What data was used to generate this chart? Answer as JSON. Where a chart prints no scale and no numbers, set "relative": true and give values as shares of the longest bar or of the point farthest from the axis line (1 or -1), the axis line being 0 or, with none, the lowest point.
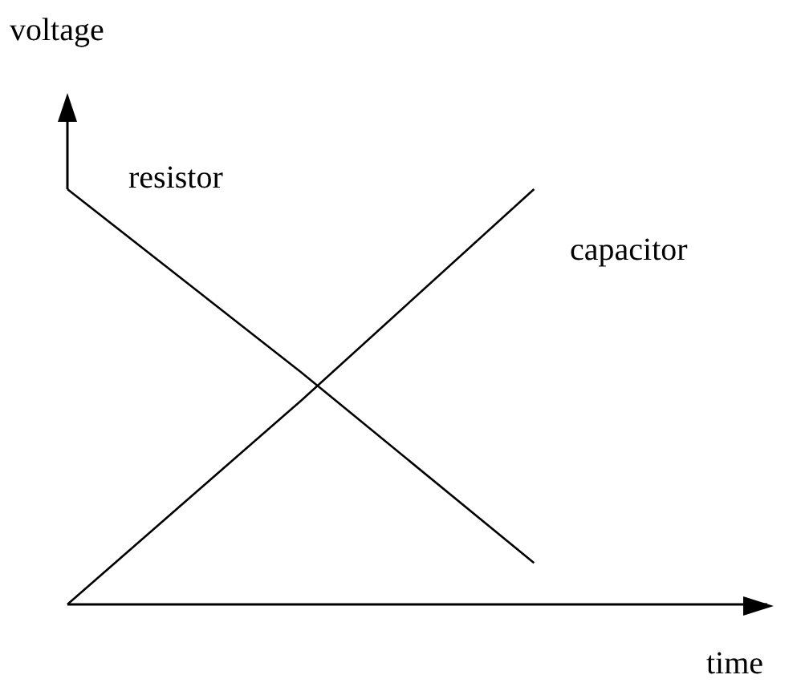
{
  "chart_data": {
    "type": "line",
    "relative": true,
    "xlabel": "time",
    "ylabel": "voltage",
    "categories": [
      null,
      null,
      null,
      null
    ],
    "marker": "none",
    "line_style": "solid",
    "series": [
      {
        "name": "resistor",
        "color": "#000000",
        "values": [
          1,
          0.56,
          0.1,
          null
        ]
      },
      {
        "name": "capacitor",
        "color": "#000000",
        "values": [
          0,
          0.49,
          1,
          null
        ]
      }
    ]
  }
}
